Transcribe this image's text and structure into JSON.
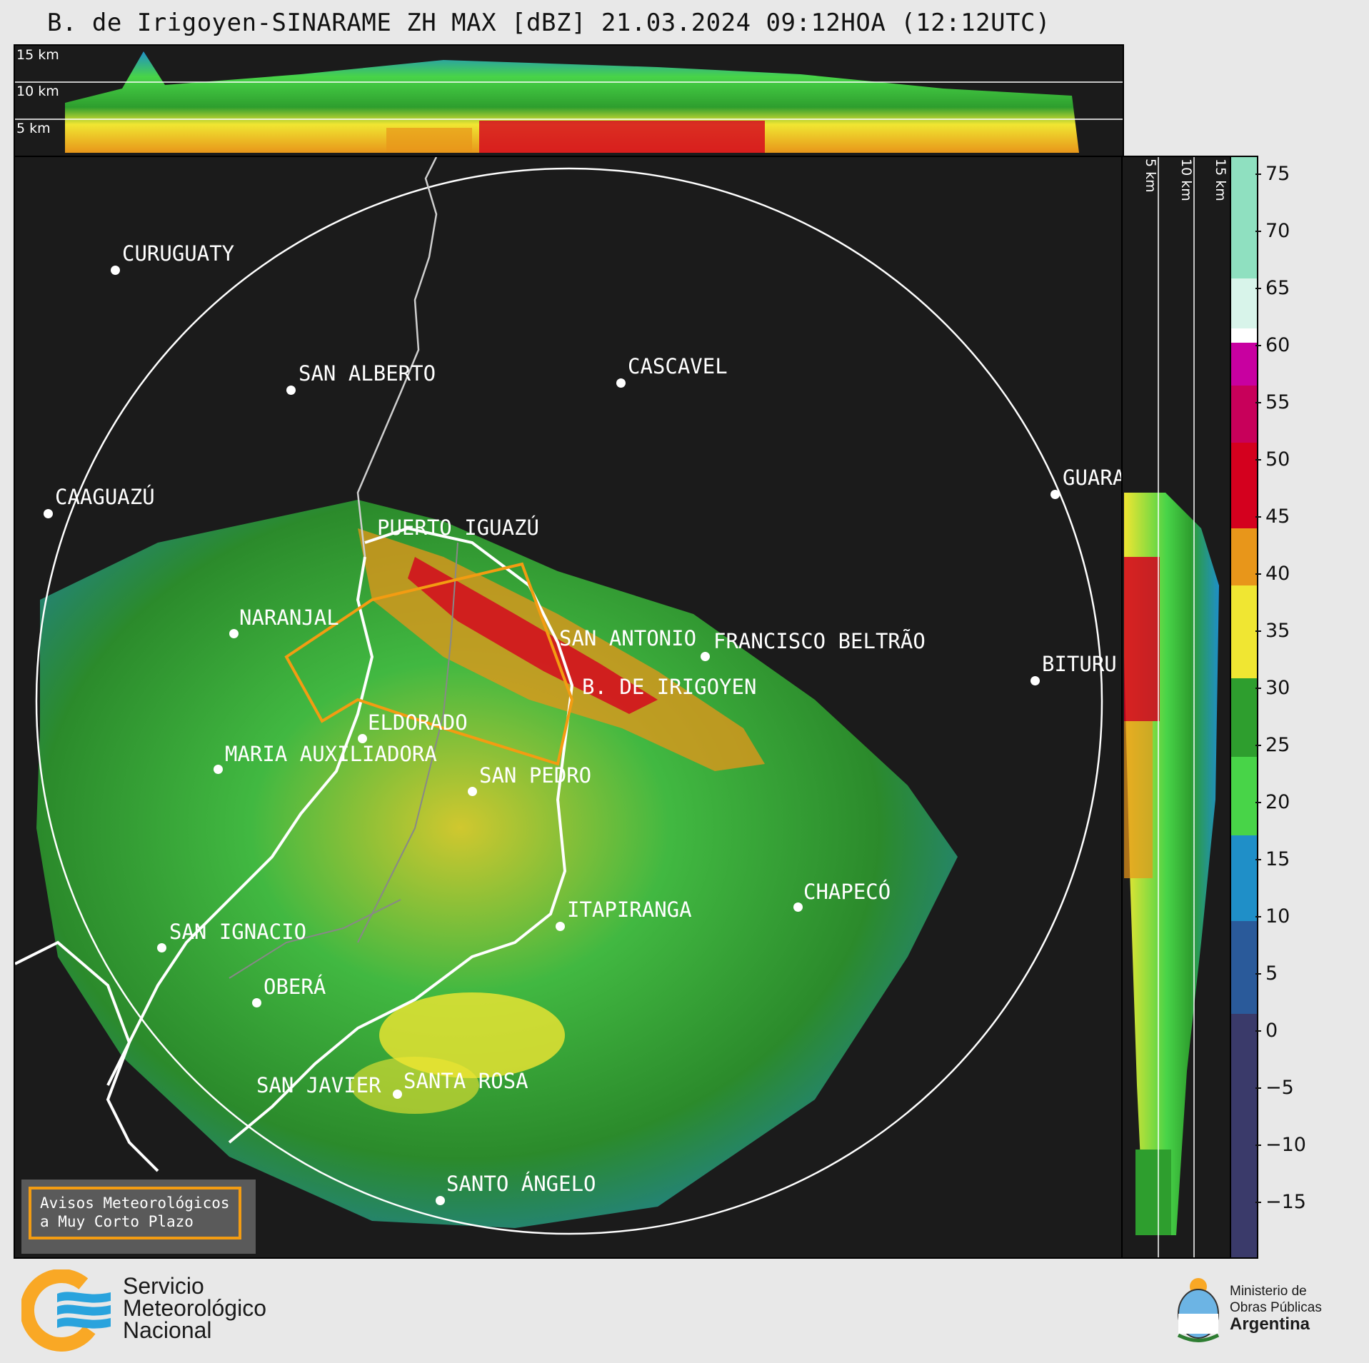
{
  "title": "B. de Irigoyen-SINARAME ZH MAX [dBZ] 21.03.2024 09:12HOA (12:12UTC)",
  "top_panel": {
    "height_labels": [
      "15 km",
      "10 km",
      "5 km"
    ]
  },
  "side_panel": {
    "height_labels": [
      "5 km",
      "10 km",
      "15 km"
    ]
  },
  "colorbar": {
    "ticks": [
      "75",
      "70",
      "65",
      "60",
      "55",
      "50",
      "45",
      "40",
      "35",
      "30",
      "25",
      "20",
      "15",
      "10",
      "5",
      "0",
      "−5",
      "−10",
      "−15"
    ],
    "colors": {
      "high": "#8fe0c0",
      "white": "#ffffff",
      "magenta": "#c800a0",
      "red": "#d4001e",
      "orange": "#e8961a",
      "yellow": "#f0e632",
      "green": "#2e9e2e",
      "lightgreen": "#48d448",
      "blue": "#1f8fc8",
      "darkblue": "#2a5a9a",
      "navy": "#3a3a6a"
    }
  },
  "cities": [
    {
      "name": "CURUGUATY"
    },
    {
      "name": "SAN ALBERTO"
    },
    {
      "name": "CASCAVEL"
    },
    {
      "name": "CAAGUAZÚ"
    },
    {
      "name": "GUARA"
    },
    {
      "name": "PUERTO IGUAZÚ"
    },
    {
      "name": "NARANJAL"
    },
    {
      "name": "SAN ANTONIO"
    },
    {
      "name": "FRANCISCO BELTRÃO"
    },
    {
      "name": "B. DE IRIGOYEN"
    },
    {
      "name": "BITURU"
    },
    {
      "name": "ELDORADO"
    },
    {
      "name": "MARIA AUXILIADORA"
    },
    {
      "name": "SAN PEDRO"
    },
    {
      "name": "ITAPIRANGA"
    },
    {
      "name": "CHAPECÓ"
    },
    {
      "name": "SAN IGNACIO"
    },
    {
      "name": "OBERÁ"
    },
    {
      "name": "SAN JAVIER"
    },
    {
      "name": "SANTA ROSA"
    },
    {
      "name": "SANTO ÁNGELO"
    }
  ],
  "aviso": {
    "line1": "Avisos Meteorológicos",
    "line2": "a Muy Corto Plazo"
  },
  "smn": {
    "line1": "Servicio",
    "line2": "Meteorológico",
    "line3": "Nacional"
  },
  "ministerio": {
    "line1": "Ministerio de",
    "line2": "Obras Públicas",
    "line3": "Argentina"
  }
}
